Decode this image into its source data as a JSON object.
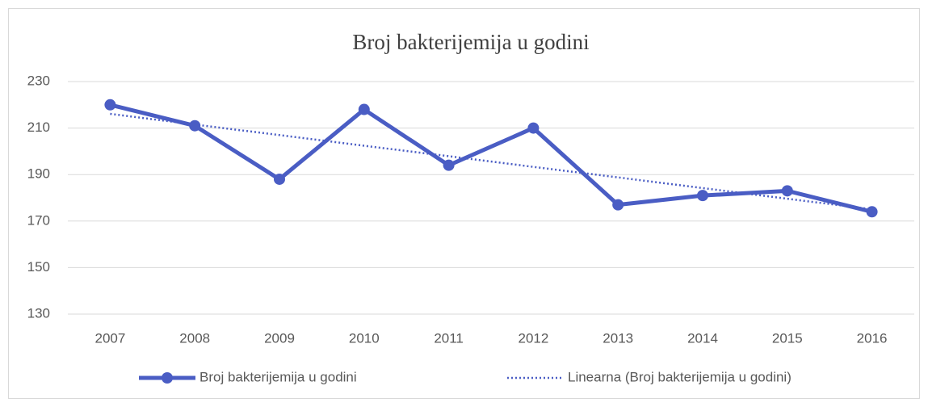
{
  "chart_data": {
    "type": "line",
    "title": "Broj bakterijemija u godini",
    "categories": [
      "2007",
      "2008",
      "2009",
      "2010",
      "2011",
      "2012",
      "2013",
      "2014",
      "2015",
      "2016"
    ],
    "series": [
      {
        "name": "Broj bakterijemija u godini",
        "color": "#4a5dc4",
        "style": "solid",
        "markers": true,
        "values": [
          220,
          211,
          188,
          218,
          194,
          210,
          177,
          181,
          183,
          174
        ]
      },
      {
        "name": "Linearna (Broj bakterijemija u godini)",
        "color": "#4a5dc4",
        "style": "dotted",
        "markers": false,
        "values": [
          216.1,
          211.5,
          207,
          202.4,
          197.9,
          193.3,
          188.8,
          184.2,
          179.6,
          175.1
        ]
      }
    ],
    "ylim": [
      130,
      230
    ],
    "yticks": [
      130,
      150,
      170,
      190,
      210,
      230
    ],
    "grid": true,
    "legend": "bottom"
  }
}
